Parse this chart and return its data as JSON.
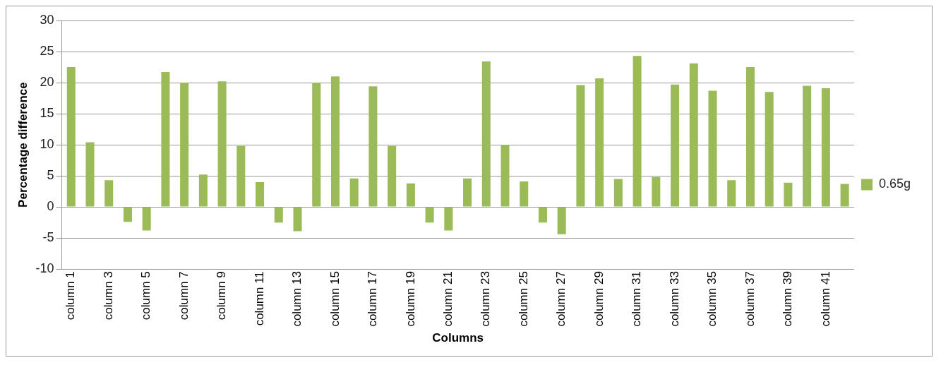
{
  "chart_data": {
    "type": "bar",
    "xlabel": "Columns",
    "ylabel": "Percentage difference",
    "categories": [
      "column 1",
      null,
      "column 3",
      null,
      "column 5",
      null,
      "column 7",
      null,
      "column 9",
      null,
      "column 11",
      null,
      "column 13",
      null,
      "column 15",
      null,
      "column 17",
      null,
      "column 19",
      null,
      "column 21",
      null,
      "column 23",
      null,
      "column 25",
      null,
      "column 27",
      null,
      "column 29",
      null,
      "column 31",
      null,
      "column 33",
      null,
      "column 35",
      null,
      "column 37",
      null,
      "column 39",
      null,
      "column 41",
      null
    ],
    "series": [
      {
        "name": "0.65g",
        "color": "#9bbb59",
        "values": [
          22.5,
          10.4,
          4.3,
          -2.4,
          -3.8,
          21.7,
          20.0,
          5.2,
          20.2,
          9.8,
          4.0,
          -2.5,
          -3.9,
          20.0,
          21.0,
          4.6,
          19.4,
          9.8,
          3.8,
          -2.5,
          -3.8,
          4.6,
          23.4,
          10.0,
          4.1,
          -2.5,
          -4.4,
          19.6,
          20.7,
          4.5,
          24.3,
          4.8,
          19.7,
          23.1,
          18.7,
          4.3,
          22.5,
          18.5,
          3.9,
          19.5,
          19.1,
          3.7
        ]
      }
    ],
    "ylim": [
      -10,
      30
    ],
    "yticks": [
      -10,
      -5,
      0,
      5,
      10,
      15,
      20,
      25,
      30
    ],
    "grid": "y",
    "legend": "right"
  }
}
